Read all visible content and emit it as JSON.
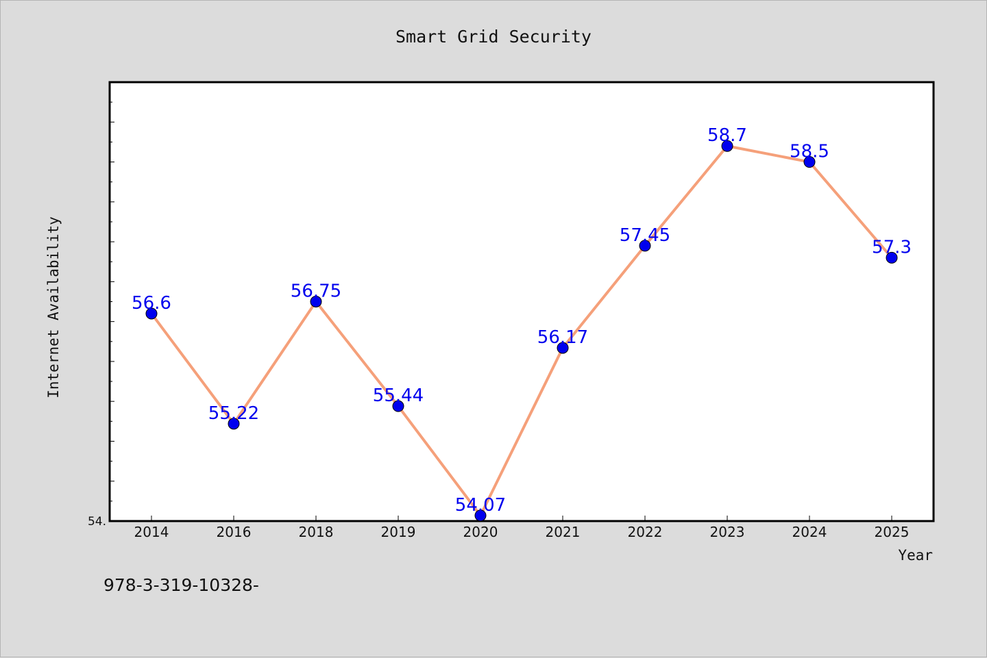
{
  "chart_data": {
    "type": "line",
    "title": "Smart Grid Security",
    "xlabel": "Year",
    "ylabel": "Internet Availability",
    "categories": [
      "2014",
      "2016",
      "2018",
      "2019",
      "2020",
      "2021",
      "2022",
      "2023",
      "2024",
      "2025"
    ],
    "series": [
      {
        "values": [
          56.6,
          55.22,
          56.75,
          55.44,
          54.07,
          56.17,
          57.45,
          58.7,
          58.5,
          57.3
        ],
        "labels": [
          "56.6",
          "55.22",
          "56.75",
          "55.44",
          "54.07",
          "56.17",
          "57.45",
          "58.7",
          "58.5",
          "57.3"
        ]
      }
    ],
    "ylim": [
      54.0,
      59.5
    ],
    "y_tick_labels": [
      "54."
    ],
    "grid": false,
    "line_color": "#f5a07a",
    "marker_color": "#0000ee",
    "label_color": "#0000ee"
  },
  "footer_text": "978-3-319-10328-"
}
